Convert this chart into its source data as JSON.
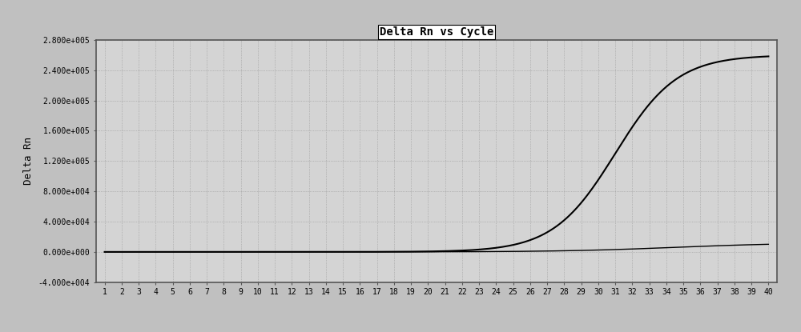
{
  "title": "Delta Rn vs Cycle",
  "xlabel": "",
  "ylabel": "Delta Rn",
  "xlim": [
    0.5,
    40.5
  ],
  "ylim": [
    -40000,
    280000
  ],
  "yticks": [
    -40000,
    0,
    40000,
    80000,
    120000,
    160000,
    200000,
    240000,
    280000
  ],
  "ytick_labels": [
    "-4.000e+004",
    "0.000e+000",
    "4.000e+004",
    "8.000e+004",
    "1.200e+005",
    "1.600e+005",
    "2.000e+005",
    "2.400e+005",
    "2.800e+005"
  ],
  "xticks": [
    1,
    2,
    3,
    4,
    5,
    6,
    7,
    8,
    9,
    10,
    11,
    12,
    13,
    14,
    15,
    16,
    17,
    18,
    19,
    20,
    21,
    22,
    23,
    24,
    25,
    26,
    27,
    28,
    29,
    30,
    31,
    32,
    33,
    34,
    35,
    36,
    37,
    38,
    39,
    40
  ],
  "background_color": "#c0c0c0",
  "plot_bg_color": "#d4d4d4",
  "line_color": "#000000",
  "grid_color": "#888888",
  "title_color": "#000000",
  "sigmoid_midpoint": 31.0,
  "sigmoid_max": 260000,
  "sigmoid_slope": 0.55,
  "flat_curve_max": 12000,
  "flat_midpoint": 34.5,
  "flat_slope": 0.3
}
